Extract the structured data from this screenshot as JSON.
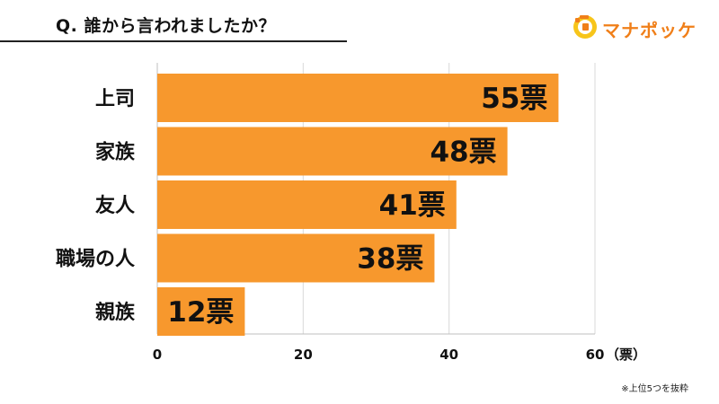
{
  "header": {
    "question": "Q. 誰から言われましたか？",
    "brand": "マナポッケ"
  },
  "colors": {
    "bar": "#f7982d",
    "brand": "#f07f19",
    "logo_yellow": "#f7c51a",
    "grid": "#d9d9d9",
    "axis": "#bfbfbf",
    "text": "#111111"
  },
  "chart_data": {
    "type": "bar",
    "orientation": "horizontal",
    "categories": [
      "上司",
      "家族",
      "友人",
      "職場の人",
      "親族"
    ],
    "values": [
      55,
      48,
      41,
      38,
      12
    ],
    "data_labels": [
      "55票",
      "48票",
      "41票",
      "38票",
      "12票"
    ],
    "x_ticks": [
      "0",
      "20",
      "40",
      "60"
    ],
    "xlim": [
      0,
      60
    ],
    "unit_label": "（票）",
    "grid": true,
    "legend": "none"
  },
  "footnote": "※上位5つを抜粋"
}
